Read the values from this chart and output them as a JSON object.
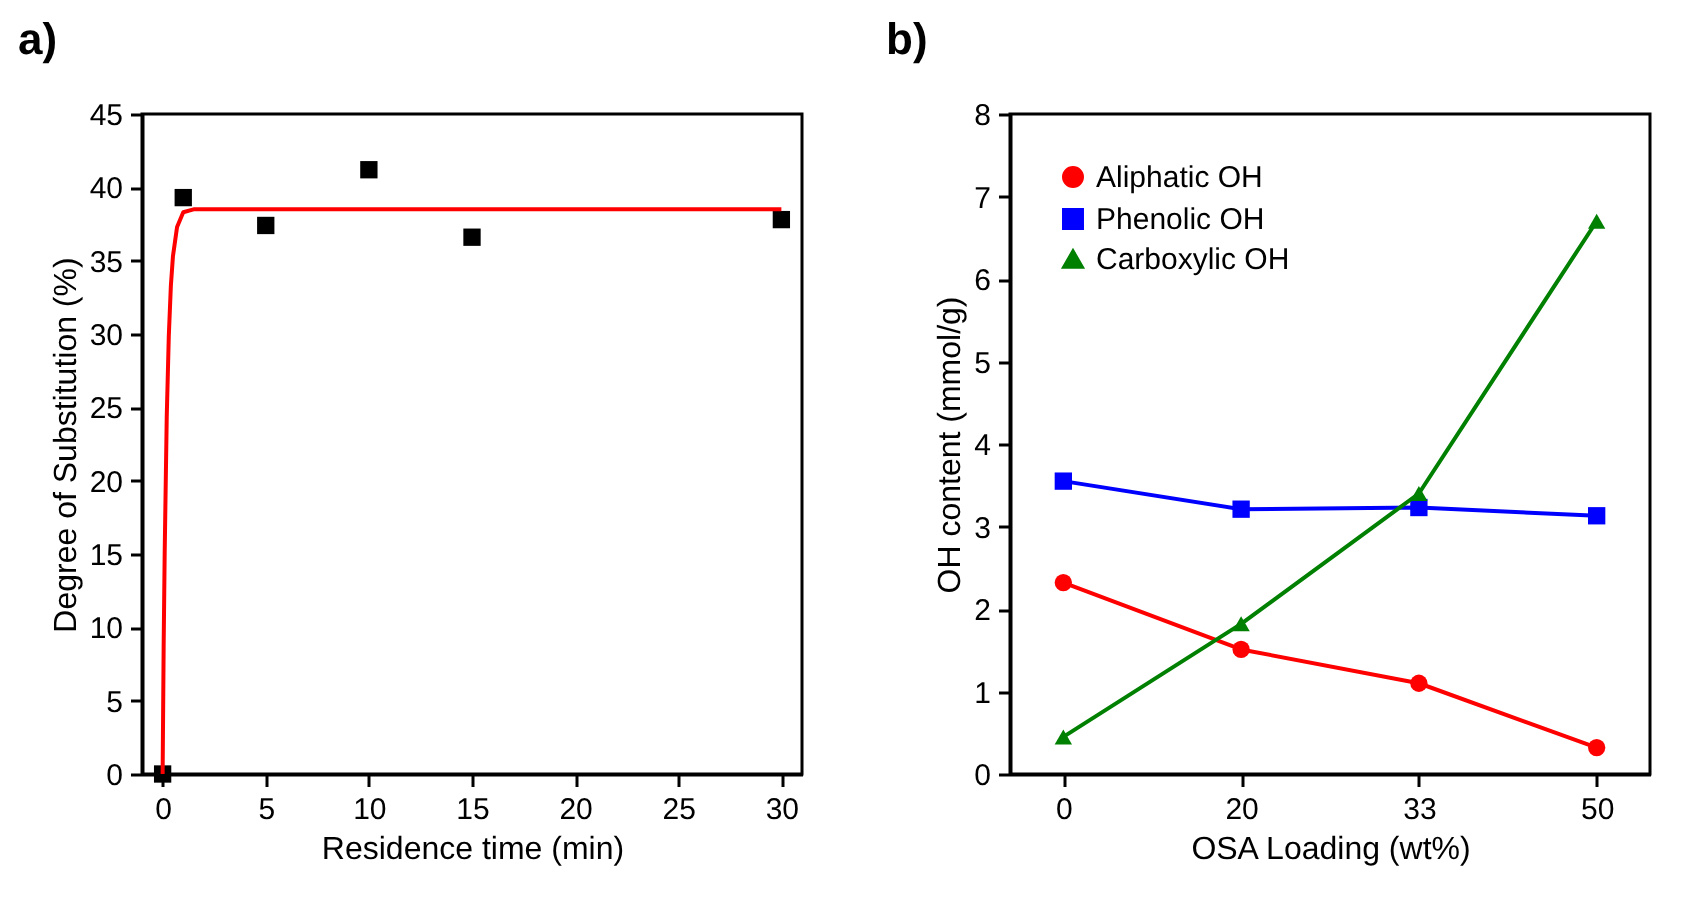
{
  "chart_data": [
    {
      "type": "scatter",
      "title": "a)",
      "xlabel": "Residence time (min)",
      "ylabel": "Degree of Substitution (%)",
      "xlim": [
        -1,
        31
      ],
      "xticks": [
        0,
        5,
        10,
        15,
        20,
        25,
        30
      ],
      "ylim": [
        0,
        45
      ],
      "yticks": [
        0,
        5,
        10,
        15,
        20,
        25,
        30,
        35,
        40,
        45
      ],
      "grid": false,
      "legend": false,
      "series": [
        {
          "type": "scatter",
          "marker": "square",
          "color": "#000000",
          "x": [
            0,
            1,
            5,
            10,
            15,
            30
          ],
          "values": [
            0,
            39.3,
            37.4,
            41.2,
            36.6,
            37.8
          ]
        },
        {
          "type": "line",
          "marker": "none",
          "line_style": "solid",
          "color": "#ff0000",
          "x": [
            0,
            0.05,
            0.1,
            0.2,
            0.3,
            0.4,
            0.5,
            0.7,
            1,
            1.5,
            30
          ],
          "values": [
            0,
            8.7,
            15.1,
            24.4,
            29.9,
            33.3,
            35.3,
            37.3,
            38.3,
            38.5,
            38.5
          ]
        }
      ]
    },
    {
      "type": "line",
      "title": "b)",
      "xlabel": "OSA Loading (wt%)",
      "ylabel": "OH content (mmol/g)",
      "categories": [
        "0",
        "20",
        "33",
        "50"
      ],
      "ylim": [
        0,
        8
      ],
      "yticks": [
        0,
        1,
        2,
        3,
        4,
        5,
        6,
        7,
        8
      ],
      "grid": false,
      "legend": "top left",
      "line_style": "solid",
      "series": [
        {
          "name": "Aliphatic OH",
          "marker": "circle",
          "color": "#ff0000",
          "values": [
            2.32,
            1.51,
            1.1,
            0.32
          ]
        },
        {
          "name": "Phenolic OH",
          "marker": "square",
          "color": "#0000ff",
          "values": [
            3.55,
            3.21,
            3.23,
            3.13
          ]
        },
        {
          "name": "Carboxylic OH",
          "marker": "triangle",
          "color": "#008000",
          "values": [
            0.45,
            1.82,
            3.4,
            6.7
          ]
        }
      ]
    }
  ]
}
